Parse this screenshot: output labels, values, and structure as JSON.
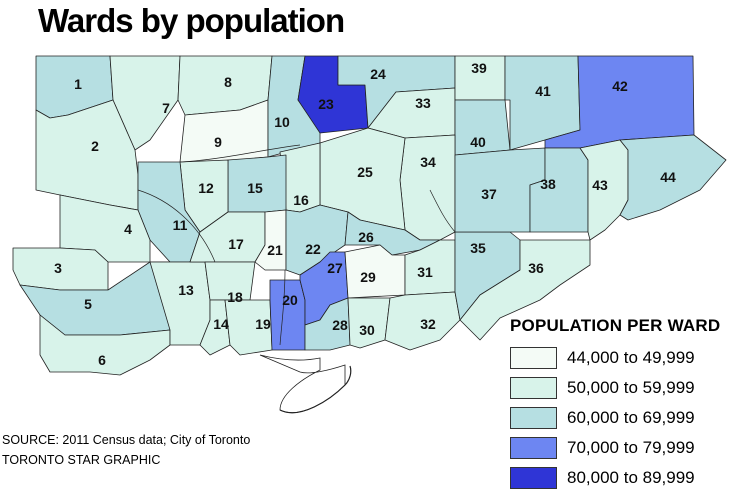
{
  "title": "Wards by population",
  "legend": {
    "title": "POPULATION PER WARD",
    "items": [
      {
        "label": "44,000 to 49,999",
        "color": "#f4fbf6"
      },
      {
        "label": "50,000 to 59,999",
        "color": "#d8f3ea"
      },
      {
        "label": "60,000 to 69,999",
        "color": "#b6dfe2"
      },
      {
        "label": "70,000 to 79,999",
        "color": "#6d86f2"
      },
      {
        "label": "80,000 to 89,999",
        "color": "#2f35d6"
      }
    ]
  },
  "wards": [
    {
      "id": "1",
      "tier": 2
    },
    {
      "id": "2",
      "tier": 1
    },
    {
      "id": "3",
      "tier": 1
    },
    {
      "id": "4",
      "tier": 1
    },
    {
      "id": "5",
      "tier": 2
    },
    {
      "id": "6",
      "tier": 1
    },
    {
      "id": "7",
      "tier": 1
    },
    {
      "id": "8",
      "tier": 1
    },
    {
      "id": "9",
      "tier": 0
    },
    {
      "id": "10",
      "tier": 2
    },
    {
      "id": "11",
      "tier": 2
    },
    {
      "id": "12",
      "tier": 1
    },
    {
      "id": "13",
      "tier": 1
    },
    {
      "id": "14",
      "tier": 1
    },
    {
      "id": "15",
      "tier": 2
    },
    {
      "id": "16",
      "tier": 1
    },
    {
      "id": "17",
      "tier": 1
    },
    {
      "id": "18",
      "tier": 1
    },
    {
      "id": "19",
      "tier": 1
    },
    {
      "id": "20",
      "tier": 3
    },
    {
      "id": "21",
      "tier": 0
    },
    {
      "id": "22",
      "tier": 2
    },
    {
      "id": "23",
      "tier": 4
    },
    {
      "id": "24",
      "tier": 2
    },
    {
      "id": "25",
      "tier": 1
    },
    {
      "id": "26",
      "tier": 2
    },
    {
      "id": "27",
      "tier": 3
    },
    {
      "id": "28",
      "tier": 2
    },
    {
      "id": "29",
      "tier": 0
    },
    {
      "id": "30",
      "tier": 1
    },
    {
      "id": "31",
      "tier": 1
    },
    {
      "id": "32",
      "tier": 1
    },
    {
      "id": "33",
      "tier": 1
    },
    {
      "id": "34",
      "tier": 1
    },
    {
      "id": "35",
      "tier": 2
    },
    {
      "id": "36",
      "tier": 1
    },
    {
      "id": "37",
      "tier": 2
    },
    {
      "id": "38",
      "tier": 2
    },
    {
      "id": "39",
      "tier": 1
    },
    {
      "id": "40",
      "tier": 2
    },
    {
      "id": "41",
      "tier": 2
    },
    {
      "id": "42",
      "tier": 3
    },
    {
      "id": "43",
      "tier": 1
    },
    {
      "id": "44",
      "tier": 2
    }
  ],
  "source": {
    "line1": "SOURCE: 2011 Census data;  City of Toronto",
    "line2": "TORONTO STAR GRAPHIC"
  }
}
